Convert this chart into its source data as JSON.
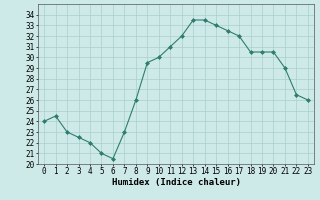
{
  "x": [
    0,
    1,
    2,
    3,
    4,
    5,
    6,
    7,
    8,
    9,
    10,
    11,
    12,
    13,
    14,
    15,
    16,
    17,
    18,
    19,
    20,
    21,
    22,
    23
  ],
  "y": [
    24,
    24.5,
    23,
    22.5,
    22,
    21,
    20.5,
    23,
    26,
    29.5,
    30,
    31,
    32,
    33.5,
    33.5,
    33,
    32.5,
    32,
    30.5,
    30.5,
    30.5,
    29,
    26.5,
    26
  ],
  "xlabel": "Humidex (Indice chaleur)",
  "ylim": [
    20,
    35
  ],
  "xlim": [
    -0.5,
    23.5
  ],
  "yticks": [
    20,
    21,
    22,
    23,
    24,
    25,
    26,
    27,
    28,
    29,
    30,
    31,
    32,
    33,
    34
  ],
  "xticks": [
    0,
    1,
    2,
    3,
    4,
    5,
    6,
    7,
    8,
    9,
    10,
    11,
    12,
    13,
    14,
    15,
    16,
    17,
    18,
    19,
    20,
    21,
    22,
    23
  ],
  "line_color": "#2e7d6e",
  "marker": "D",
  "marker_size": 2.0,
  "bg_color": "#ceeae8",
  "grid_color": "#aacfcc",
  "tick_fontsize": 5.5,
  "xlabel_fontsize": 6.5,
  "line_width": 0.8
}
